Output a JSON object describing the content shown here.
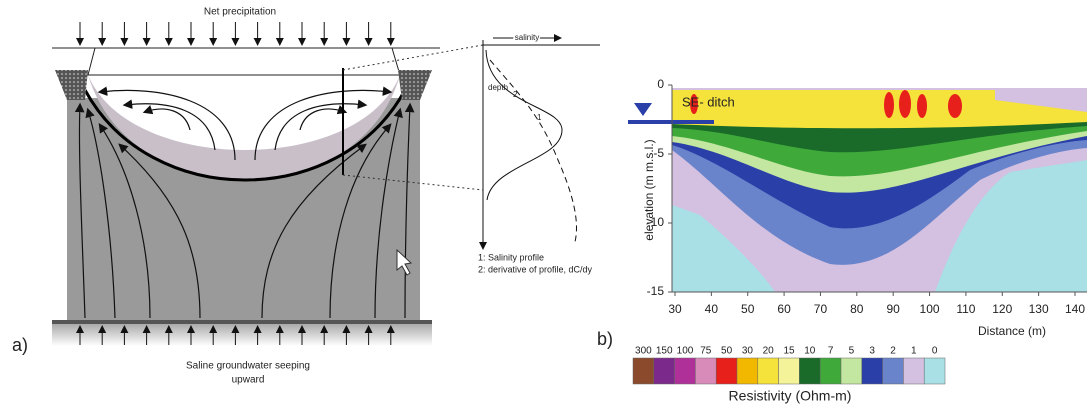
{
  "panel_a": {
    "label": "a)",
    "top_label": "Net precipitation",
    "bottom_label": [
      "Saline groundwater seeping",
      "upward"
    ],
    "profile": {
      "x_label": "salinity",
      "y_label": "depth",
      "curve_labels": [
        "1",
        "2"
      ],
      "legend": [
        "1: Salinity profile",
        "2: derivative of profile, dC/dy"
      ]
    }
  },
  "panel_b": {
    "label": "b)",
    "annotation": "SE- ditch",
    "y_label": "elevation (m m.s.l.)",
    "x_label": "Distance (m)",
    "ylim": [
      0,
      -15
    ],
    "yticks": [
      0,
      -5,
      -10,
      -15
    ],
    "xlim": [
      30,
      140
    ],
    "xticks": [
      30,
      40,
      50,
      60,
      70,
      80,
      90,
      100,
      110,
      120,
      130,
      140
    ],
    "colorbar": {
      "title": "Resistivity (Ohm-m)",
      "labels": [
        300,
        150,
        100,
        75,
        50,
        30,
        20,
        15,
        10,
        7,
        5,
        3,
        2,
        1,
        0
      ],
      "colors": [
        "#8b4a2b",
        "#7b2a8c",
        "#b0309a",
        "#d88ab8",
        "#e8201c",
        "#f2b800",
        "#f5e23a",
        "#f4f39a",
        "#1a6b2a",
        "#3faa3a",
        "#c3e6a0",
        "#2a3fa8",
        "#6a84cc",
        "#d4c0e0",
        "#a8e0e6"
      ]
    }
  }
}
